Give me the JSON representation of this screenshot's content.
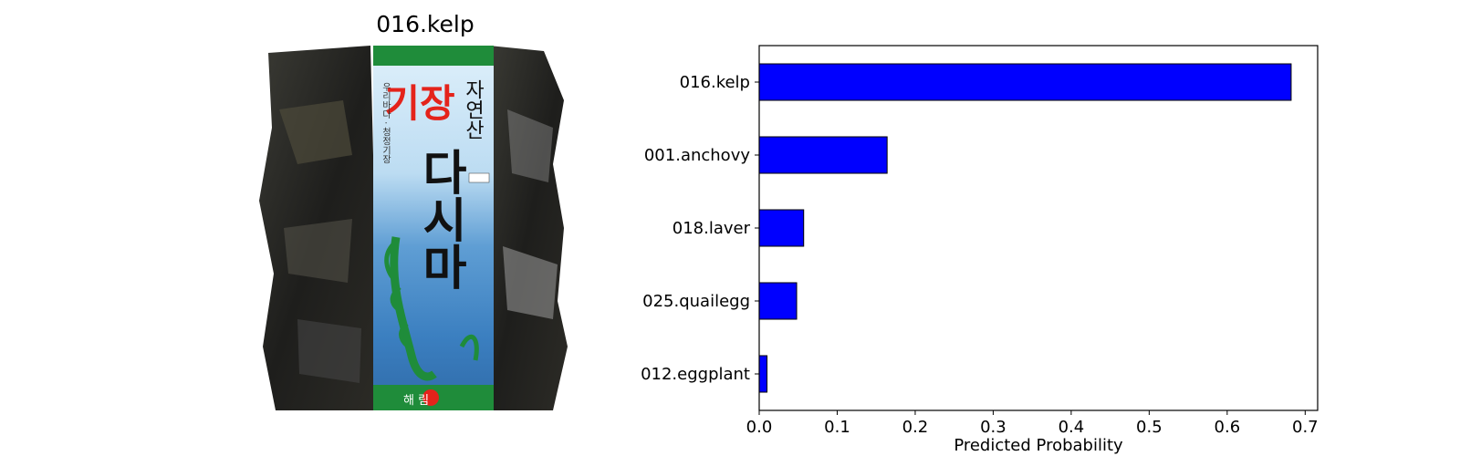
{
  "image_panel": {
    "title": "016.kelp",
    "package_text": {
      "brand_top": "기장",
      "brand_side": "자연산",
      "product": "다시마",
      "vertical": "우리바다 · 청정기장",
      "bottom": "해  림"
    }
  },
  "colors": {
    "bar": "#0000ff",
    "bar_edge": "#000000",
    "package_green": "#1f8c3a",
    "brand_red": "#e4231b"
  },
  "chart_data": {
    "type": "bar",
    "orientation": "horizontal",
    "categories": [
      "016.kelp",
      "001.anchovy",
      "018.laver",
      "025.quailegg",
      "012.eggplant"
    ],
    "values": [
      0.682,
      0.164,
      0.057,
      0.048,
      0.01
    ],
    "xlabel": "Predicted Probability",
    "ylabel": "",
    "xlim": [
      0,
      0.716
    ],
    "xticks": [
      0.0,
      0.1,
      0.2,
      0.3,
      0.4,
      0.5,
      0.6,
      0.7
    ],
    "xtick_labels": [
      "0.0",
      "0.1",
      "0.2",
      "0.3",
      "0.4",
      "0.5",
      "0.6",
      "0.7"
    ],
    "grid": false,
    "legend": "none"
  }
}
